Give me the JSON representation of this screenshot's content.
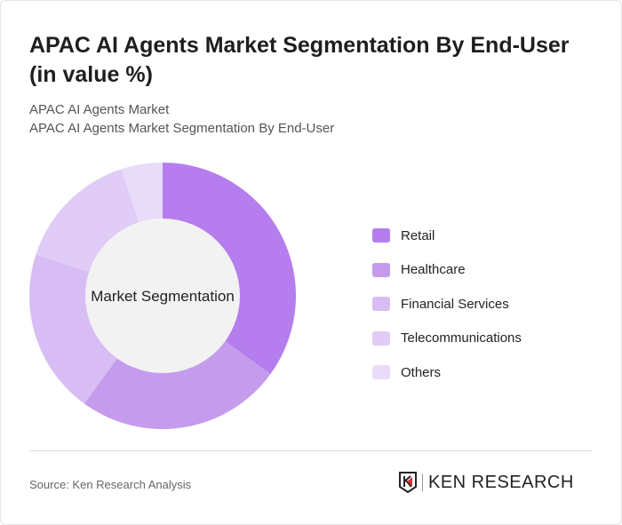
{
  "title": "APAC AI Agents Market Segmentation By End-User (in value %)",
  "subtitle1": "APAC AI Agents Market",
  "subtitle2": "APAC AI Agents Market Segmentation By End-User",
  "source": "Source: Ken Research Analysis",
  "logo": "KEN RESEARCH",
  "chart_data": {
    "type": "pie",
    "donut": true,
    "center_label": "Market Segmentation",
    "categories": [
      "Retail",
      "Healthcare",
      "Financial Services",
      "Telecommunications",
      "Others"
    ],
    "values": [
      35,
      25,
      20,
      15,
      5
    ],
    "colors": [
      "#b57ded",
      "#c59ced",
      "#d8bdf4",
      "#e0ccf6",
      "#e9dcf9"
    ],
    "legend": "right"
  }
}
